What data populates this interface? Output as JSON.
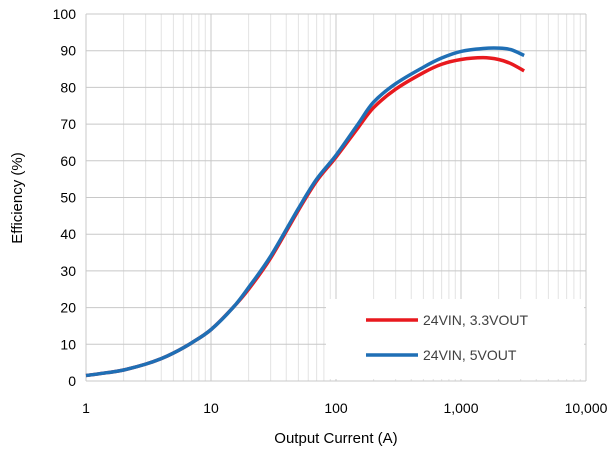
{
  "chart_data": {
    "type": "line",
    "title": "",
    "xlabel": "Output Current (A)",
    "ylabel": "Efficiency  (%)",
    "x_scale": "log",
    "xlim": [
      1,
      10000
    ],
    "ylim": [
      0,
      100
    ],
    "grid": true,
    "legend_position": "bottom-right",
    "x_ticks": [
      "1",
      "10",
      "100",
      "1,000",
      "10,000"
    ],
    "y_ticks": [
      "0",
      "10",
      "20",
      "30",
      "40",
      "50",
      "60",
      "70",
      "80",
      "90",
      "100"
    ],
    "series": [
      {
        "name": "24VIN, 3.3VOUT",
        "color": "#e8191e",
        "x": [
          1,
          1.5,
          2,
          3,
          4,
          5,
          7,
          10,
          15,
          20,
          30,
          50,
          70,
          100,
          150,
          200,
          300,
          500,
          700,
          1000,
          1500,
          2000,
          2500,
          3200
        ],
        "y": [
          1.5,
          2.3,
          3.0,
          4.6,
          6.1,
          7.6,
          10.4,
          14.0,
          20.0,
          25.0,
          33.5,
          46.5,
          54.5,
          61.0,
          69.0,
          74.5,
          79.5,
          84.0,
          86.3,
          87.6,
          88.1,
          87.6,
          86.5,
          84.5
        ]
      },
      {
        "name": "24VIN, 5VOUT",
        "color": "#1f6fb5",
        "x": [
          1,
          1.5,
          2,
          3,
          4,
          5,
          7,
          10,
          15,
          20,
          30,
          50,
          70,
          100,
          150,
          200,
          300,
          500,
          700,
          1000,
          1500,
          2000,
          2500,
          3200
        ],
        "y": [
          1.5,
          2.3,
          3.0,
          4.6,
          6.1,
          7.6,
          10.4,
          14.0,
          20.0,
          25.5,
          34.0,
          47.0,
          55.0,
          61.5,
          70.0,
          76.0,
          81.0,
          85.5,
          88.0,
          89.8,
          90.6,
          90.7,
          90.3,
          88.7
        ]
      }
    ]
  }
}
